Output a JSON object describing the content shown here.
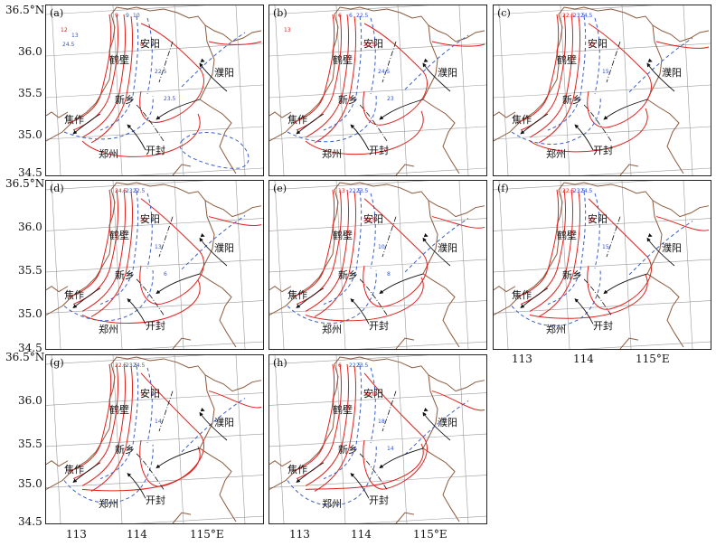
{
  "y_ticks": [
    "36.5°N",
    "36.0",
    "35.5",
    "35.0",
    "34.5"
  ],
  "x_ticks": [
    "113",
    "114",
    "115°E"
  ],
  "cities": {
    "anyang": "安阳",
    "hebi": "鹤壁",
    "puyang": "濮阳",
    "xinxiang": "新乡",
    "jiaozuo": "焦作",
    "zhengzhou": "郑州",
    "kaifeng": "开封"
  },
  "panels": [
    {
      "label": "(a)",
      "small": {
        "t1": "9",
        "t2": "9",
        "t3": "10",
        "t4": "8",
        "t5": "22.5",
        "t6": "23.5",
        "t7": "12",
        "t8": "13",
        "t9": "24.5"
      }
    },
    {
      "label": "(b)",
      "small": {
        "t1": "6",
        "t2": "6",
        "t3": "22.5",
        "t4": "23.5",
        "t5": "24.5",
        "t6": "23",
        "t7": "13"
      }
    },
    {
      "label": "(c)",
      "small": {
        "t1": "22.5",
        "t2": "23.5",
        "t3": "24.5",
        "t4": "13",
        "t5": "15"
      }
    },
    {
      "label": "(d)",
      "small": {
        "t1": "24.5",
        "t2": "23.5",
        "t3": "22.5",
        "t4": "24",
        "t5": "13",
        "t6": "6"
      }
    },
    {
      "label": "(e)",
      "small": {
        "t1": "13",
        "t2": "22.5",
        "t3": "23.5",
        "t4": "24.5",
        "t5": "10",
        "t6": "8"
      }
    },
    {
      "label": "(f)",
      "small": {
        "t1": "22.5",
        "t2": "23.5",
        "t3": "24.5",
        "t4": "13",
        "t5": "15"
      }
    },
    {
      "label": "(g)",
      "small": {
        "t1": "22.5",
        "t2": "23.5",
        "t3": "24.5",
        "t4": "13",
        "t5": "14"
      }
    },
    {
      "label": "(h)",
      "small": {
        "t1": "6",
        "t2": "22.5",
        "t3": "23.5",
        "t4": "24.0",
        "t5": "18",
        "t6": "14"
      }
    }
  ],
  "colors": {
    "border": "#8b5a3c",
    "grid": "#9a9a9a",
    "red_contour": "#e0201c",
    "blue_dashed": "#3a5fc8",
    "arrow": "#111111"
  }
}
